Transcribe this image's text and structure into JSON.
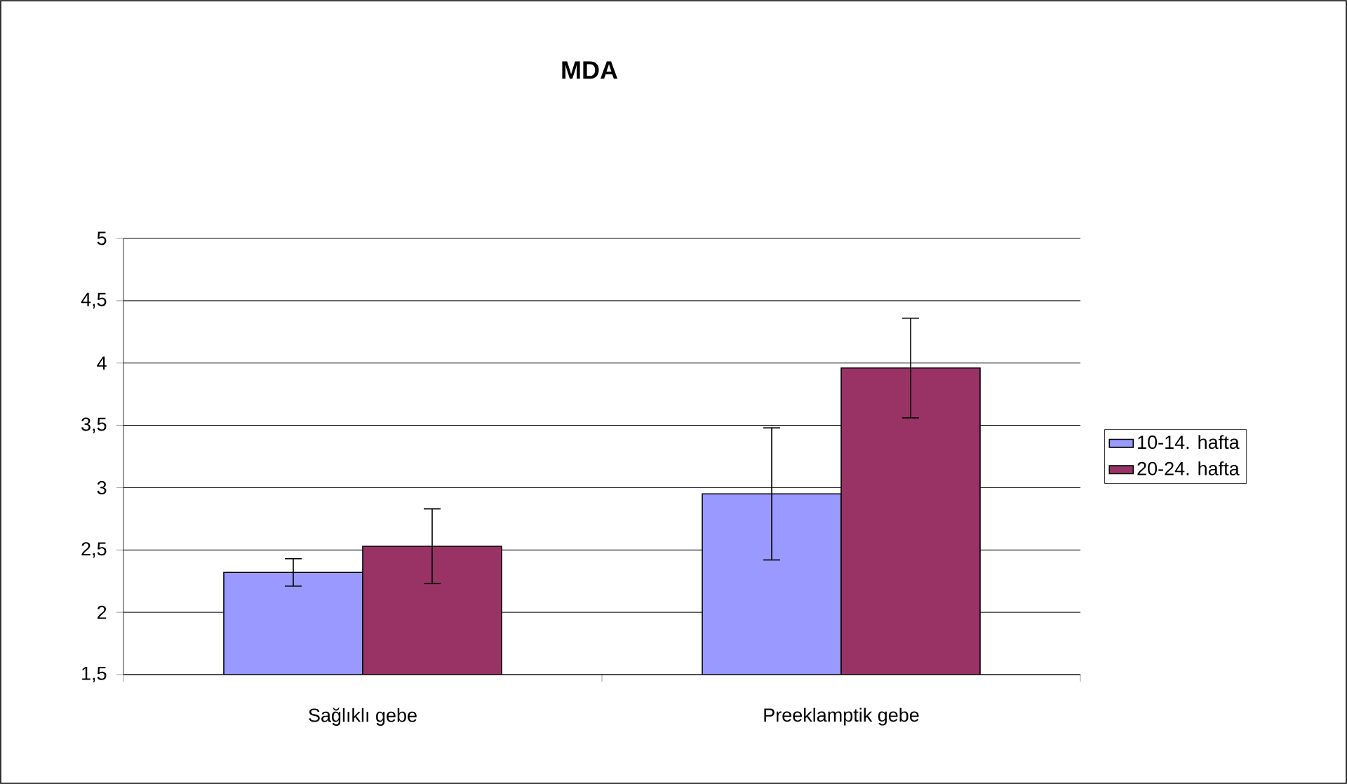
{
  "chart_data": {
    "type": "bar",
    "title": "MDA",
    "categories": [
      "Sağlıklı gebe",
      "Preeklamptik gebe"
    ],
    "series": [
      {
        "name": "10-14. hafta",
        "color": "#9999ff",
        "values": [
          2.32,
          2.95
        ],
        "errors": [
          0.11,
          0.53
        ]
      },
      {
        "name": "20-24. hafta",
        "color": "#993366",
        "values": [
          2.53,
          3.96
        ],
        "errors": [
          0.3,
          0.4
        ]
      }
    ],
    "ylim": [
      1.5,
      5
    ],
    "yticks": [
      {
        "value": 1.5,
        "label": "1,5"
      },
      2,
      {
        "value": 2.5,
        "label": "2,5"
      },
      3,
      {
        "value": 3.5,
        "label": "3,5"
      },
      4,
      {
        "value": 4.5,
        "label": "4,5"
      },
      5
    ],
    "grid": "y",
    "legend": "right"
  }
}
